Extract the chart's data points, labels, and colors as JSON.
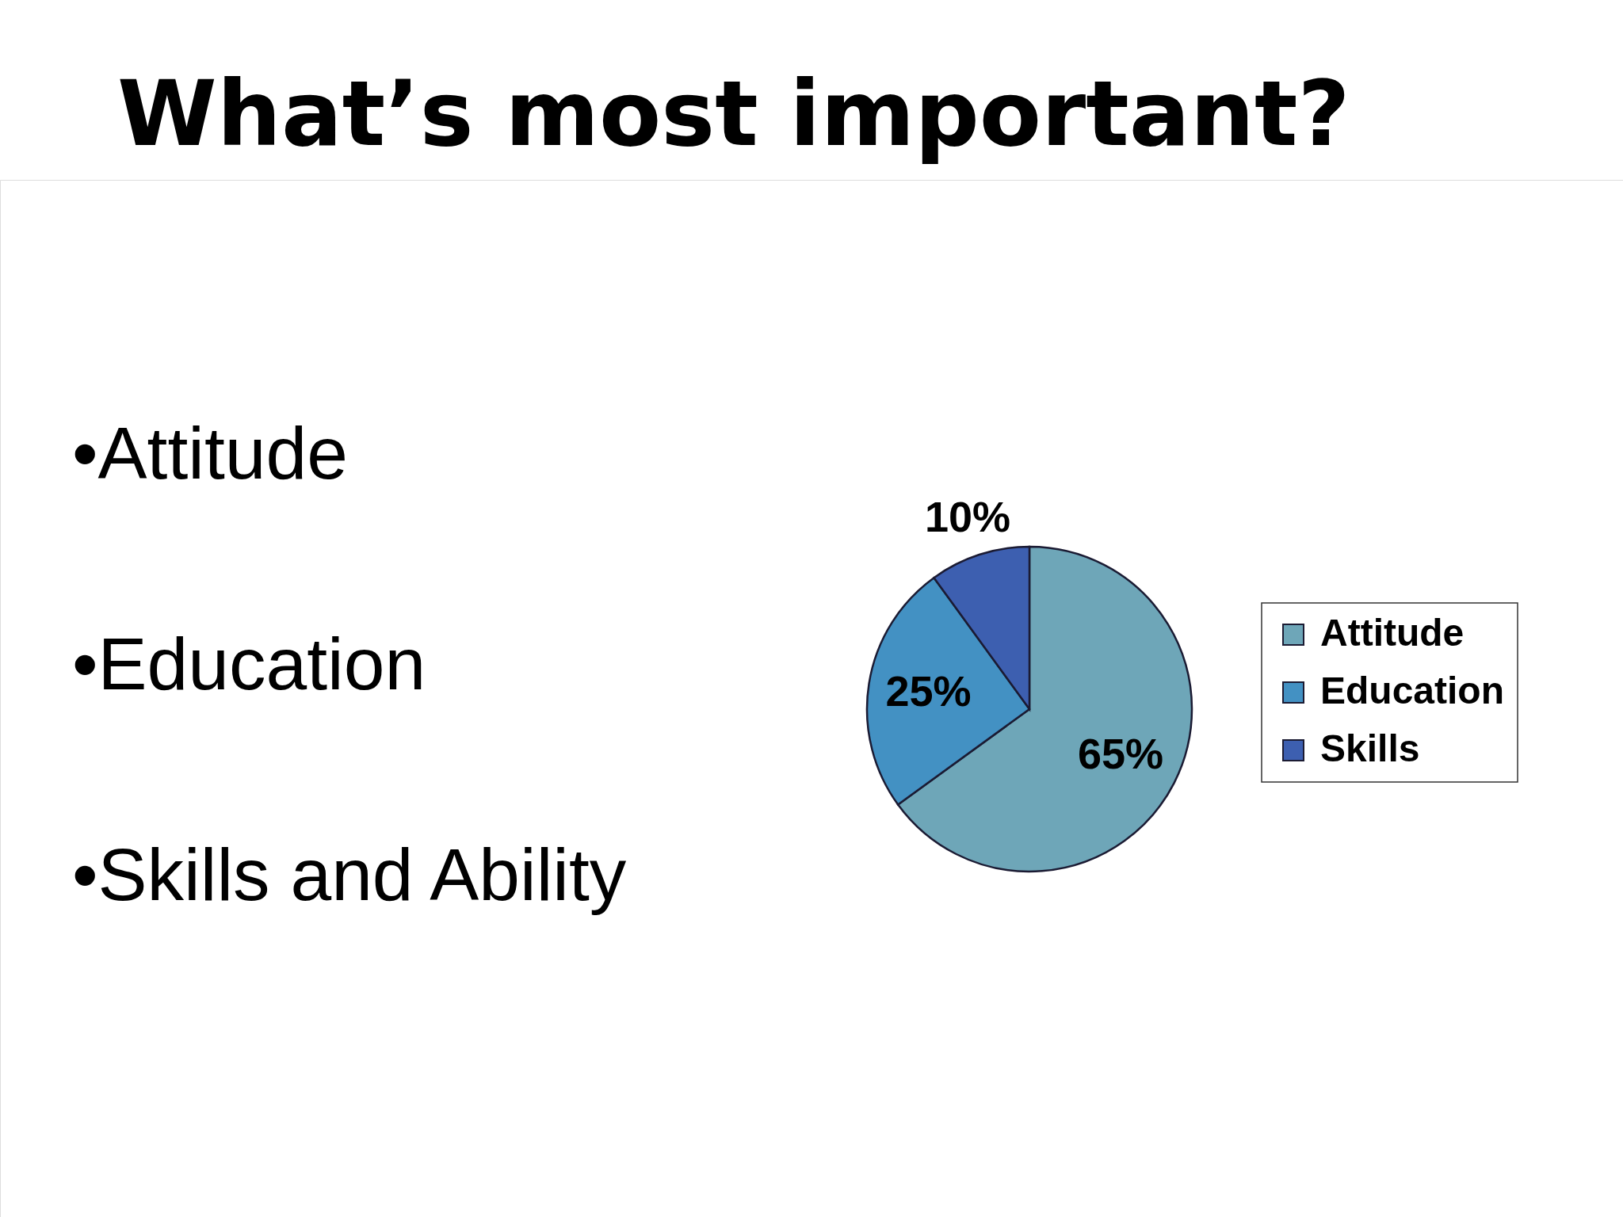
{
  "chart_data": {
    "type": "pie",
    "title": "What’s most important?",
    "categories": [
      "Attitude",
      "Education",
      "Skills"
    ],
    "values": [
      65,
      25,
      10
    ],
    "colors": [
      "#6ea6b8",
      "#4391c3",
      "#3d5fb0"
    ],
    "value_labels": [
      "65%",
      "25%",
      "10%"
    ],
    "legend": "right",
    "annotations": [
      "•Attitude",
      "•Education",
      "•Skills and Ability"
    ]
  }
}
